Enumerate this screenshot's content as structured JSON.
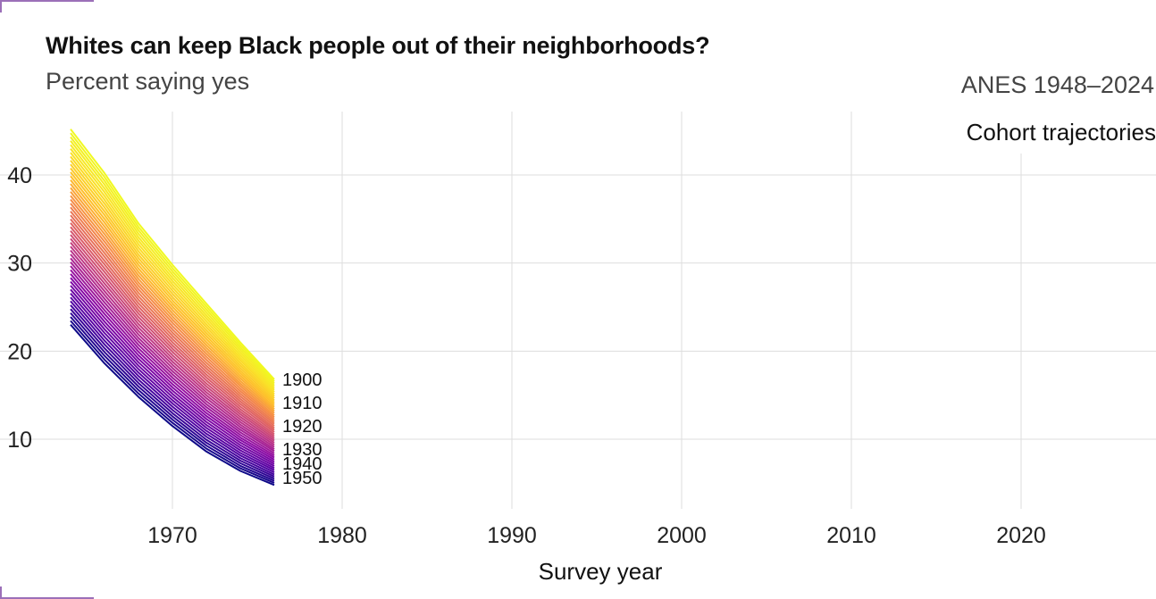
{
  "header": {
    "title": "Whites can keep Black people out of their neighborhoods?",
    "subtitle": "Percent saying yes",
    "source": "ANES 1948–2024",
    "legend_title": "Cohort trajectories"
  },
  "chart_data": {
    "type": "line",
    "title": "Whites can keep Black people out of their neighborhoods?",
    "subtitle": "Percent saying yes",
    "xlabel": "Survey year",
    "ylabel": "",
    "xlim": [
      1963,
      2028
    ],
    "ylim": [
      3.5,
      47
    ],
    "x_ticks": [
      1970,
      1980,
      1990,
      2000,
      2010,
      2020
    ],
    "y_ticks": [
      10,
      20,
      30,
      40
    ],
    "grid": true,
    "colorscale": "plasma",
    "cohorts": {
      "first": 1900,
      "last": 1950,
      "step": 1
    },
    "x": [
      1964,
      1966,
      1968,
      1970,
      1972,
      1974,
      1976
    ],
    "oldest_values": [
      45.2,
      40.2,
      34.5,
      29.8,
      25.4,
      21.0,
      16.8
    ],
    "youngest_values": [
      23.0,
      18.6,
      14.8,
      11.5,
      8.6,
      6.4,
      4.8
    ],
    "end_labels": [
      "1900",
      "1910",
      "1920",
      "1930",
      "1940",
      "1950"
    ]
  }
}
